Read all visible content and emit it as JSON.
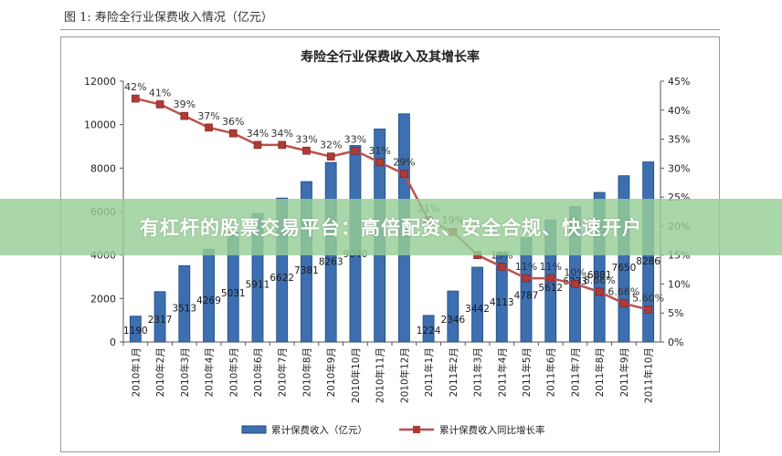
{
  "figure_caption": "图 1: 寿险全行业保费收入情况（亿元）",
  "banner_text": "有杠杆的股票交易平台：高倍配资、安全合规、快速开户",
  "colors": {
    "bar_fill": "#3d6fb0",
    "bar_edge": "#1f4a80",
    "line": "#c0504d",
    "marker": "#b03a36"
  },
  "chart_data": {
    "type": "bar",
    "title": "寿险全行业保费收入及其增长率",
    "categories": [
      "2010年1月",
      "2010年2月",
      "2010年3月",
      "2010年4月",
      "2010年5月",
      "2010年6月",
      "2010年7月",
      "2010年8月",
      "2010年9月",
      "2010年10月",
      "2010年11月",
      "2010年12月",
      "2011年1月",
      "2011年2月",
      "2011年3月",
      "2011年4月",
      "2011年5月",
      "2011年6月",
      "2011年7月",
      "2011年8月",
      "2011年9月",
      "2011年10月"
    ],
    "series": [
      {
        "name": "累计保费收入（亿元）",
        "type": "bar",
        "axis": "left",
        "values": [
          1190,
          2317,
          3513,
          4269,
          5031,
          5911,
          6622,
          7381,
          8263,
          9040,
          9800,
          10500,
          1224,
          2346,
          3442,
          4113,
          4787,
          5612,
          6233,
          6881,
          7650,
          8286
        ],
        "labels": [
          "1190",
          "2317",
          "3513",
          "4269",
          "5031",
          "5911",
          "6622",
          "7381",
          "8263",
          "9040",
          "",
          "",
          "1224",
          "2346",
          "3442",
          "4113",
          "4787",
          "5612",
          "6233",
          "6881",
          "7650",
          "8286"
        ]
      },
      {
        "name": "累计保费收入同比增长率",
        "type": "line",
        "axis": "right",
        "values": [
          42,
          41,
          39,
          37,
          36,
          34,
          34,
          33,
          32,
          33,
          31,
          29,
          21,
          19,
          15,
          13,
          11,
          11,
          10,
          8.66,
          6.66,
          5.6
        ],
        "labels": [
          "42%",
          "41%",
          "39%",
          "37%",
          "36%",
          "34%",
          "34%",
          "33%",
          "32%",
          "33%",
          "31%",
          "29%",
          "21%",
          "19%",
          "",
          "13%",
          "11%",
          "11%",
          "10%",
          "8.66%",
          "6.66%",
          "5.60%"
        ]
      }
    ],
    "y_left": {
      "min": 0,
      "max": 12000,
      "ticks": [
        "0",
        "2000",
        "4000",
        "6000",
        "8000",
        "10000",
        "12000"
      ]
    },
    "y_right": {
      "min": 0,
      "max": 45,
      "ticks": [
        "0%",
        "5%",
        "10%",
        "15%",
        "20%",
        "25%",
        "30%",
        "35%",
        "40%",
        "45%"
      ]
    },
    "legend_position": "bottom",
    "grid": false
  }
}
